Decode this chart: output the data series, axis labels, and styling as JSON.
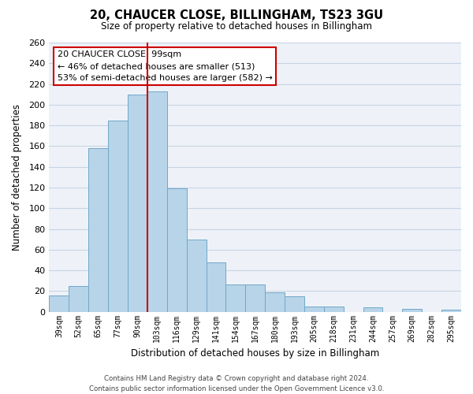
{
  "title": "20, CHAUCER CLOSE, BILLINGHAM, TS23 3GU",
  "subtitle": "Size of property relative to detached houses in Billingham",
  "xlabel": "Distribution of detached houses by size in Billingham",
  "ylabel": "Number of detached properties",
  "bar_labels": [
    "39sqm",
    "52sqm",
    "65sqm",
    "77sqm",
    "90sqm",
    "103sqm",
    "116sqm",
    "129sqm",
    "141sqm",
    "154sqm",
    "167sqm",
    "180sqm",
    "193sqm",
    "205sqm",
    "218sqm",
    "231sqm",
    "244sqm",
    "257sqm",
    "269sqm",
    "282sqm",
    "295sqm"
  ],
  "bar_values": [
    16,
    25,
    158,
    185,
    210,
    213,
    119,
    70,
    48,
    26,
    26,
    19,
    15,
    5,
    5,
    0,
    4,
    0,
    3,
    0,
    2
  ],
  "bar_color": "#b8d4e8",
  "bar_edge_color": "#6fa8c8",
  "vline_x": 4.5,
  "vline_color": "#cc0000",
  "ylim": [
    0,
    260
  ],
  "yticks": [
    0,
    20,
    40,
    60,
    80,
    100,
    120,
    140,
    160,
    180,
    200,
    220,
    240,
    260
  ],
  "annotation_text": "20 CHAUCER CLOSE: 99sqm\n← 46% of detached houses are smaller (513)\n53% of semi-detached houses are larger (582) →",
  "annotation_box_color": "#ffffff",
  "annotation_box_edge": "#cc0000",
  "footer_line1": "Contains HM Land Registry data © Crown copyright and database right 2024.",
  "footer_line2": "Contains public sector information licensed under the Open Government Licence v3.0.",
  "background_color": "#ffffff",
  "plot_bg_color": "#eef2f8",
  "grid_color": "#c8d4e4"
}
